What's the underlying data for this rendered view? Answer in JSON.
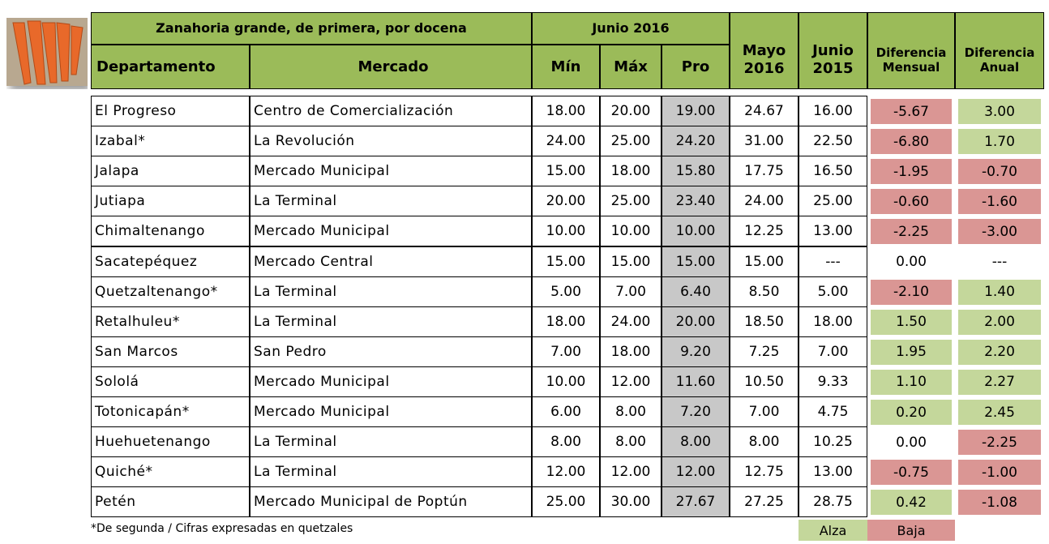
{
  "header": {
    "title": "Zanahoria grande, de primera, por docena",
    "group": "Junio 2016",
    "columns": [
      "Departamento",
      "Mercado",
      "Mín",
      "Máx",
      "Pro",
      "Mayo 2016",
      "Junio 2015",
      "Diferencia Mensual",
      "Diferencia Anual"
    ]
  },
  "table": {
    "rows": [
      [
        "El Progreso",
        "Centro de Comercialización",
        "18.00",
        "20.00",
        "19.00",
        "24.67",
        "16.00",
        "-5.67",
        "3.00"
      ],
      [
        "Izabal*",
        "La Revolución",
        "24.00",
        "25.00",
        "24.20",
        "31.00",
        "22.50",
        "-6.80",
        "1.70"
      ],
      [
        "Jalapa",
        "Mercado Municipal",
        "15.00",
        "18.00",
        "15.80",
        "17.75",
        "16.50",
        "-1.95",
        "-0.70"
      ],
      [
        "Jutiapa",
        "La Terminal",
        "20.00",
        "25.00",
        "23.40",
        "24.00",
        "25.00",
        "-0.60",
        "-1.60"
      ],
      [
        "Chimaltenango",
        "Mercado Municipal",
        "10.00",
        "10.00",
        "10.00",
        "12.25",
        "13.00",
        "-2.25",
        "-3.00"
      ],
      [
        "Sacatepéquez",
        "Mercado Central",
        "15.00",
        "15.00",
        "15.00",
        "15.00",
        "---",
        "0.00",
        "---"
      ],
      [
        "Quetzaltenango*",
        "La Terminal",
        "5.00",
        "7.00",
        "6.40",
        "8.50",
        "5.00",
        "-2.10",
        "1.40"
      ],
      [
        "Retalhuleu*",
        "La Terminal",
        "18.00",
        "24.00",
        "20.00",
        "18.50",
        "18.00",
        "1.50",
        "2.00"
      ],
      [
        "San Marcos",
        "San Pedro",
        "7.00",
        "18.00",
        "9.20",
        "7.25",
        "7.00",
        "1.95",
        "2.20"
      ],
      [
        "Sololá",
        "Mercado Municipal",
        "10.00",
        "12.00",
        "11.60",
        "10.50",
        "9.33",
        "1.10",
        "2.27"
      ],
      [
        "Totonicapán*",
        "Mercado Municipal",
        "6.00",
        "8.00",
        "7.20",
        "7.00",
        "4.75",
        "0.20",
        "2.45"
      ],
      [
        "Huehuetenango",
        "La Terminal",
        "8.00",
        "8.00",
        "8.00",
        "8.00",
        "10.25",
        "0.00",
        "-2.25"
      ],
      [
        "Quiché*",
        "La Terminal",
        "12.00",
        "12.00",
        "12.00",
        "12.75",
        "13.00",
        "-0.75",
        "-1.00"
      ],
      [
        "Petén",
        "Mercado Municipal de Poptún",
        "25.00",
        "30.00",
        "27.67",
        "27.25",
        "28.75",
        "0.42",
        "-1.08"
      ]
    ]
  },
  "footer": {
    "note": "*De segunda / Cifras expresadas en quetzales",
    "legend": [
      "Alza",
      "Baja"
    ]
  },
  "colors": {
    "header": "#9bbb59",
    "pro": "#c8c8c8",
    "alza": "#c4d79b",
    "baja": "#da9694"
  }
}
